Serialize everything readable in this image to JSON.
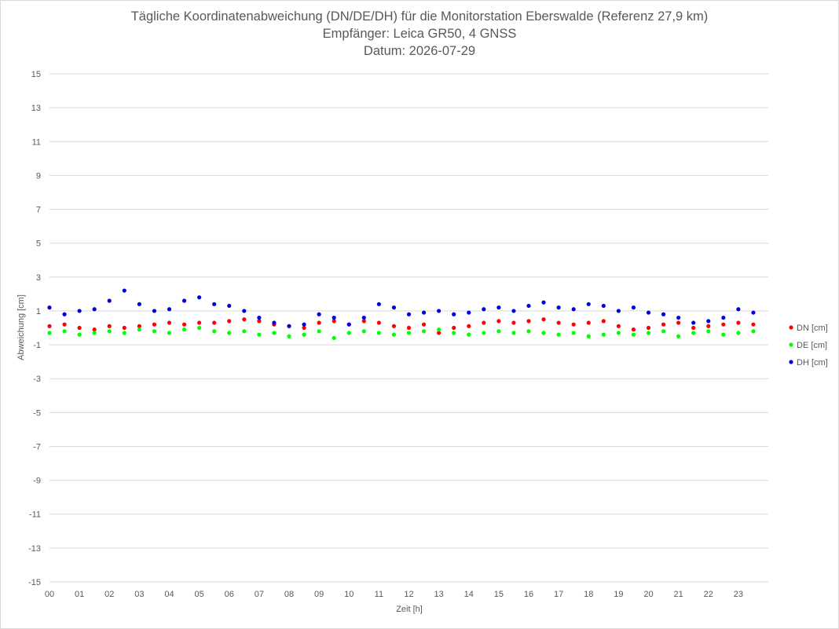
{
  "chart_data": {
    "type": "scatter",
    "title": "Tägliche Koordinatenabweichung (DN/DE/DH) für die Monitorstation Eberswalde (Referenz 27,9 km)",
    "subtitle": "Empfänger: Leica GR50, 4 GNSS",
    "date_line": "Datum: 2026-07-29",
    "xlabel": "Zeit [h]",
    "ylabel": "Abweichung [cm]",
    "ylim": [
      -15,
      15
    ],
    "yticks": [
      "15",
      "13",
      "11",
      "9",
      "7",
      "5",
      "3",
      "1",
      "-1",
      "-3",
      "-5",
      "-7",
      "-9",
      "-11",
      "-13",
      "-15"
    ],
    "xlim": [
      0,
      24
    ],
    "xticks": [
      "00",
      "01",
      "02",
      "03",
      "04",
      "05",
      "06",
      "07",
      "08",
      "09",
      "10",
      "11",
      "12",
      "13",
      "14",
      "15",
      "16",
      "17",
      "18",
      "19",
      "20",
      "21",
      "22",
      "23"
    ],
    "grid": true,
    "legend_position": "right",
    "series": [
      {
        "name": "DN [cm]",
        "color": "#ff0000",
        "x": [
          0.0,
          0.5,
          1.0,
          1.5,
          2.0,
          2.5,
          3.0,
          3.5,
          4.0,
          4.5,
          5.0,
          5.5,
          6.0,
          6.5,
          7.0,
          7.5,
          8.0,
          8.5,
          9.0,
          9.5,
          10.0,
          10.5,
          11.0,
          11.5,
          12.0,
          12.5,
          13.0,
          13.5,
          14.0,
          14.5,
          15.0,
          15.5,
          16.0,
          16.5,
          17.0,
          17.5,
          18.0,
          18.5,
          19.0,
          19.5,
          20.0,
          20.5,
          21.0,
          21.5,
          22.0,
          22.5,
          23.0,
          23.5
        ],
        "y": [
          0.1,
          0.2,
          0.0,
          -0.1,
          0.1,
          0.0,
          0.1,
          0.2,
          0.3,
          0.2,
          0.3,
          0.3,
          0.4,
          0.5,
          0.4,
          0.2,
          0.1,
          0.0,
          0.3,
          0.4,
          0.2,
          0.4,
          0.3,
          0.1,
          0.0,
          0.2,
          -0.3,
          0.0,
          0.1,
          0.3,
          0.4,
          0.3,
          0.4,
          0.5,
          0.3,
          0.2,
          0.3,
          0.4,
          0.1,
          -0.1,
          0.0,
          0.2,
          0.3,
          0.0,
          0.1,
          0.2,
          0.3,
          0.2
        ]
      },
      {
        "name": "DE [cm]",
        "color": "#00ff00",
        "x": [
          0.0,
          0.5,
          1.0,
          1.5,
          2.0,
          2.5,
          3.0,
          3.5,
          4.0,
          4.5,
          5.0,
          5.5,
          6.0,
          6.5,
          7.0,
          7.5,
          8.0,
          8.5,
          9.0,
          9.5,
          10.0,
          10.5,
          11.0,
          11.5,
          12.0,
          12.5,
          13.0,
          13.5,
          14.0,
          14.5,
          15.0,
          15.5,
          16.0,
          16.5,
          17.0,
          17.5,
          18.0,
          18.5,
          19.0,
          19.5,
          20.0,
          20.5,
          21.0,
          21.5,
          22.0,
          22.5,
          23.0,
          23.5
        ],
        "y": [
          -0.3,
          -0.2,
          -0.4,
          -0.3,
          -0.2,
          -0.3,
          -0.1,
          -0.2,
          -0.3,
          -0.1,
          0.0,
          -0.2,
          -0.3,
          -0.2,
          -0.4,
          -0.3,
          -0.5,
          -0.4,
          -0.2,
          -0.6,
          -0.3,
          -0.2,
          -0.3,
          -0.4,
          -0.3,
          -0.2,
          -0.1,
          -0.3,
          -0.4,
          -0.3,
          -0.2,
          -0.3,
          -0.2,
          -0.3,
          -0.4,
          -0.3,
          -0.5,
          -0.4,
          -0.3,
          -0.4,
          -0.3,
          -0.2,
          -0.5,
          -0.3,
          -0.2,
          -0.4,
          -0.3,
          -0.2
        ]
      },
      {
        "name": "DH [cm]",
        "color": "#0000dd",
        "x": [
          0.0,
          0.5,
          1.0,
          1.5,
          2.0,
          2.5,
          3.0,
          3.5,
          4.0,
          4.5,
          5.0,
          5.5,
          6.0,
          6.5,
          7.0,
          7.5,
          8.0,
          8.5,
          9.0,
          9.5,
          10.0,
          10.5,
          11.0,
          11.5,
          12.0,
          12.5,
          13.0,
          13.5,
          14.0,
          14.5,
          15.0,
          15.5,
          16.0,
          16.5,
          17.0,
          17.5,
          18.0,
          18.5,
          19.0,
          19.5,
          20.0,
          20.5,
          21.0,
          21.5,
          22.0,
          22.5,
          23.0,
          23.5
        ],
        "y": [
          1.2,
          0.8,
          1.0,
          1.1,
          1.6,
          2.2,
          1.4,
          1.0,
          1.1,
          1.6,
          1.8,
          1.4,
          1.3,
          1.0,
          0.6,
          0.3,
          0.1,
          0.2,
          0.8,
          0.6,
          0.2,
          0.6,
          1.4,
          1.2,
          0.8,
          0.9,
          1.0,
          0.8,
          0.9,
          1.1,
          1.2,
          1.0,
          1.3,
          1.5,
          1.2,
          1.1,
          1.4,
          1.3,
          1.0,
          1.2,
          0.9,
          0.8,
          0.6,
          0.3,
          0.4,
          0.6,
          1.1,
          0.9
        ]
      }
    ]
  }
}
